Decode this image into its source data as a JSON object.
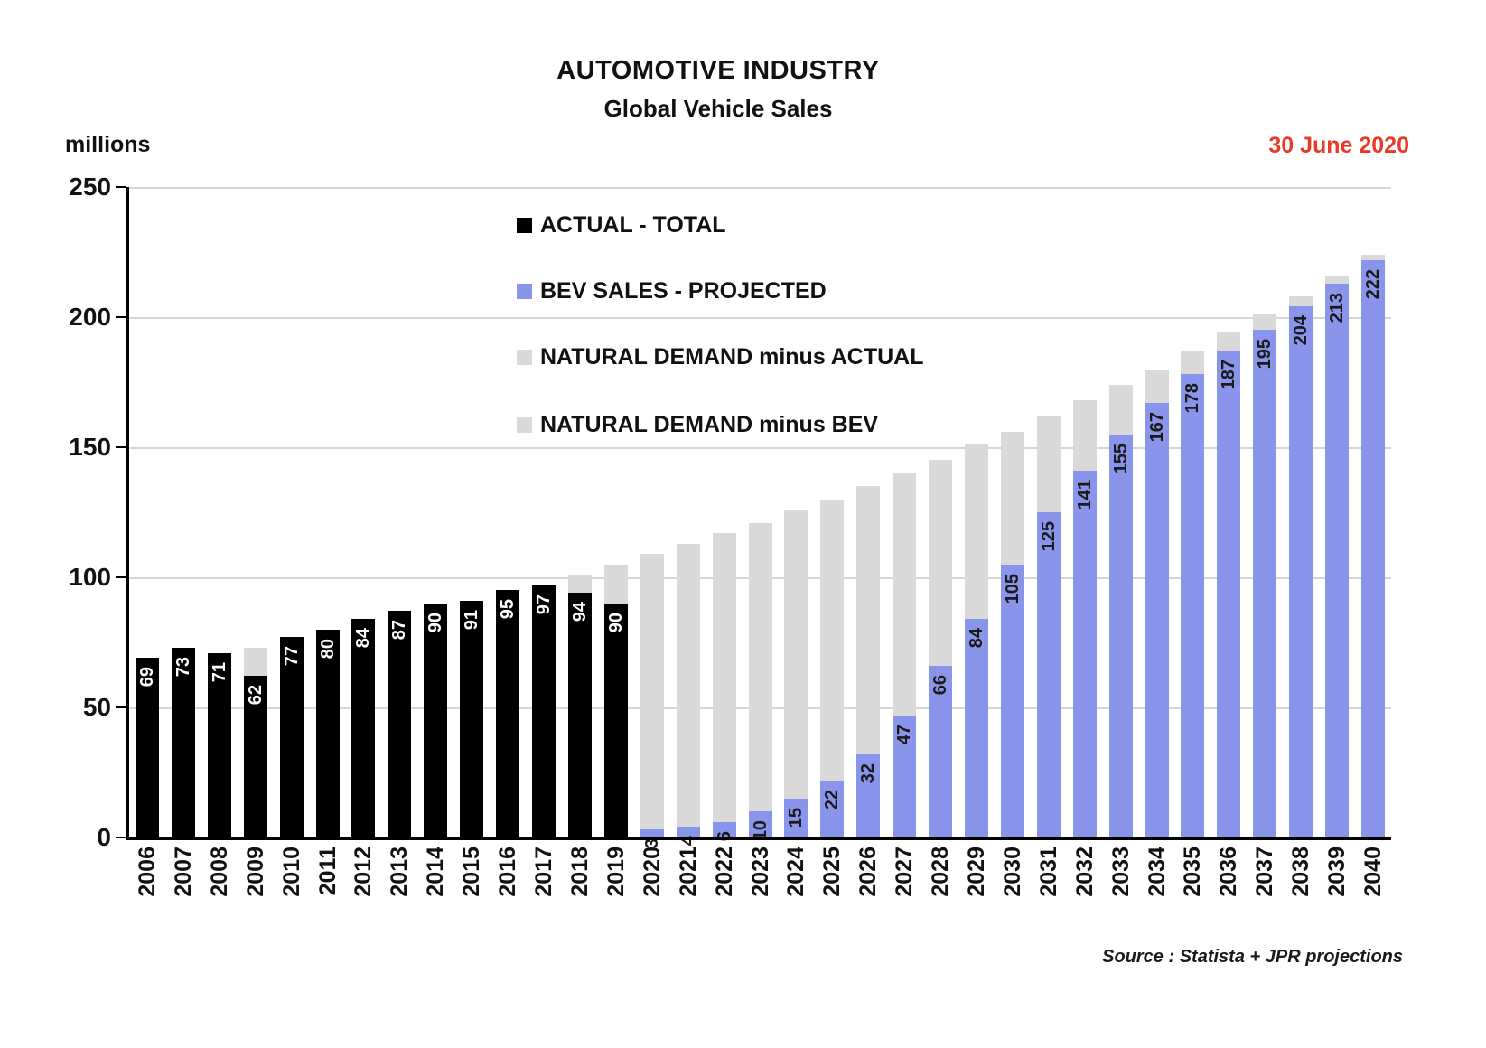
{
  "chart_data": {
    "type": "bar",
    "stacked": true,
    "title": "AUTOMOTIVE INDUSTRY",
    "subtitle": "Global Vehicle Sales",
    "y_unit": "millions",
    "date_annotation": "30 June 2020",
    "source": "Source : Statista + JPR projections",
    "ylim": [
      0,
      250
    ],
    "yticks": [
      0,
      50,
      100,
      150,
      200,
      250
    ],
    "grid": true,
    "legend_position": "upper-center-inside",
    "legend": [
      {
        "label": "ACTUAL - TOTAL",
        "color": "#000000"
      },
      {
        "label": "BEV SALES - PROJECTED",
        "color": "#8994EB"
      },
      {
        "label": "NATURAL DEMAND minus ACTUAL",
        "color": "#D9D9D9"
      },
      {
        "label": "NATURAL DEMAND minus BEV",
        "color": "#D9D9D9"
      }
    ],
    "colors": {
      "actual": "#000000",
      "bev": "#8994EB",
      "natural_demand": "#D9D9D9",
      "label_on_actual": "#ffffff",
      "label_on_bev": "#1a1a1a",
      "date": "#E73B28"
    },
    "years": [
      {
        "year": "2006",
        "actual": 69
      },
      {
        "year": "2007",
        "actual": 73
      },
      {
        "year": "2008",
        "actual": 71
      },
      {
        "year": "2009",
        "actual": 62,
        "natural_demand": 73
      },
      {
        "year": "2010",
        "actual": 77
      },
      {
        "year": "2011",
        "actual": 80
      },
      {
        "year": "2012",
        "actual": 84
      },
      {
        "year": "2013",
        "actual": 87
      },
      {
        "year": "2014",
        "actual": 90
      },
      {
        "year": "2015",
        "actual": 91
      },
      {
        "year": "2016",
        "actual": 95
      },
      {
        "year": "2017",
        "actual": 97
      },
      {
        "year": "2018",
        "actual": 94,
        "natural_demand": 101
      },
      {
        "year": "2019",
        "actual": 90,
        "natural_demand": 105
      },
      {
        "year": "2020",
        "bev": 3,
        "natural_demand": 109
      },
      {
        "year": "2021",
        "bev": 4,
        "natural_demand": 113
      },
      {
        "year": "2022",
        "bev": 6,
        "natural_demand": 117
      },
      {
        "year": "2023",
        "bev": 10,
        "natural_demand": 121
      },
      {
        "year": "2024",
        "bev": 15,
        "natural_demand": 126
      },
      {
        "year": "2025",
        "bev": 22,
        "natural_demand": 130
      },
      {
        "year": "2026",
        "bev": 32,
        "natural_demand": 135
      },
      {
        "year": "2027",
        "bev": 47,
        "natural_demand": 140
      },
      {
        "year": "2028",
        "bev": 66,
        "natural_demand": 145
      },
      {
        "year": "2029",
        "bev": 84,
        "natural_demand": 151
      },
      {
        "year": "2030",
        "bev": 105,
        "natural_demand": 156
      },
      {
        "year": "2031",
        "bev": 125,
        "natural_demand": 162
      },
      {
        "year": "2032",
        "bev": 141,
        "natural_demand": 168
      },
      {
        "year": "2033",
        "bev": 155,
        "natural_demand": 174
      },
      {
        "year": "2034",
        "bev": 167,
        "natural_demand": 180
      },
      {
        "year": "2035",
        "bev": 178,
        "natural_demand": 187
      },
      {
        "year": "2036",
        "bev": 187,
        "natural_demand": 194
      },
      {
        "year": "2037",
        "bev": 195,
        "natural_demand": 201
      },
      {
        "year": "2038",
        "bev": 204,
        "natural_demand": 208
      },
      {
        "year": "2039",
        "bev": 213,
        "natural_demand": 216
      },
      {
        "year": "2040",
        "bev": 222,
        "natural_demand": 224
      }
    ]
  }
}
